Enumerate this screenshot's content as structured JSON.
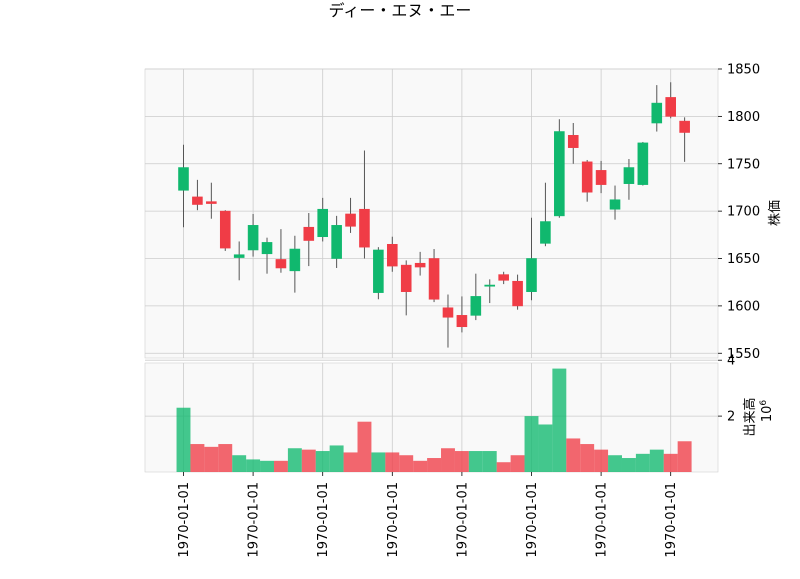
{
  "chart_data": {
    "type": "candlestick",
    "title": "ディー・エヌ・エー",
    "price_ylabel": "株価",
    "volume_ylabel": "出来高",
    "volume_multiplier_label": "10^6",
    "volume_multiplier_base": "10",
    "volume_multiplier_exp": "6",
    "price_ylim": [
      1545,
      1850
    ],
    "price_ticks": [
      1550,
      1600,
      1650,
      1700,
      1750,
      1800,
      1850
    ],
    "volume_ylim": [
      0,
      3.9
    ],
    "volume_ticks": [
      2,
      4
    ],
    "x_tick_labels": [
      "1970-01-01",
      "1970-01-01",
      "1970-01-01",
      "1970-01-01",
      "1970-01-01",
      "1970-01-01",
      "1970-01-01",
      "1970-01-01"
    ],
    "x_tick_indices": [
      0,
      5,
      10,
      15,
      20,
      25,
      30,
      35
    ],
    "colors": {
      "up": "#10b86e",
      "down": "#f03c46",
      "wick": "#555555",
      "grid": "#cccccc",
      "panel": "#f9f9f9"
    },
    "grid": true,
    "candles": [
      {
        "o": 1722,
        "h": 1770,
        "l": 1683,
        "c": 1746,
        "v": 2.3
      },
      {
        "o": 1715,
        "h": 1733,
        "l": 1701,
        "c": 1707,
        "v": 1.0
      },
      {
        "o": 1710,
        "h": 1730,
        "l": 1692,
        "c": 1708,
        "v": 0.9
      },
      {
        "o": 1700,
        "h": 1701,
        "l": 1658,
        "c": 1661,
        "v": 1.0
      },
      {
        "o": 1651,
        "h": 1668,
        "l": 1627,
        "c": 1654,
        "v": 0.6
      },
      {
        "o": 1659,
        "h": 1697,
        "l": 1652,
        "c": 1685,
        "v": 0.45
      },
      {
        "o": 1655,
        "h": 1672,
        "l": 1634,
        "c": 1667,
        "v": 0.4
      },
      {
        "o": 1649,
        "h": 1681,
        "l": 1635,
        "c": 1640,
        "v": 0.4
      },
      {
        "o": 1637,
        "h": 1674,
        "l": 1614,
        "c": 1660,
        "v": 0.85
      },
      {
        "o": 1683,
        "h": 1698,
        "l": 1642,
        "c": 1669,
        "v": 0.8
      },
      {
        "o": 1673,
        "h": 1714,
        "l": 1668,
        "c": 1702,
        "v": 0.75
      },
      {
        "o": 1650,
        "h": 1695,
        "l": 1640,
        "c": 1685,
        "v": 0.95
      },
      {
        "o": 1697,
        "h": 1714,
        "l": 1677,
        "c": 1684,
        "v": 0.7
      },
      {
        "o": 1702,
        "h": 1764,
        "l": 1650,
        "c": 1662,
        "v": 1.8
      },
      {
        "o": 1614,
        "h": 1662,
        "l": 1607,
        "c": 1659,
        "v": 0.7
      },
      {
        "o": 1665,
        "h": 1673,
        "l": 1636,
        "c": 1642,
        "v": 0.7
      },
      {
        "o": 1643,
        "h": 1648,
        "l": 1590,
        "c": 1615,
        "v": 0.6
      },
      {
        "o": 1645,
        "h": 1657,
        "l": 1632,
        "c": 1641,
        "v": 0.4
      },
      {
        "o": 1650,
        "h": 1660,
        "l": 1604,
        "c": 1607,
        "v": 0.5
      },
      {
        "o": 1598,
        "h": 1612,
        "l": 1556,
        "c": 1588,
        "v": 0.85
      },
      {
        "o": 1590,
        "h": 1610,
        "l": 1572,
        "c": 1578,
        "v": 0.75
      },
      {
        "o": 1590,
        "h": 1634,
        "l": 1585,
        "c": 1610,
        "v": 0.75
      },
      {
        "o": 1621,
        "h": 1628,
        "l": 1603,
        "c": 1622,
        "v": 0.75
      },
      {
        "o": 1633,
        "h": 1636,
        "l": 1623,
        "c": 1627,
        "v": 0.35
      },
      {
        "o": 1626,
        "h": 1633,
        "l": 1596,
        "c": 1600,
        "v": 0.6
      },
      {
        "o": 1615,
        "h": 1693,
        "l": 1606,
        "c": 1650,
        "v": 2.0
      },
      {
        "o": 1666,
        "h": 1730,
        "l": 1663,
        "c": 1689,
        "v": 1.7
      },
      {
        "o": 1695,
        "h": 1797,
        "l": 1693,
        "c": 1784,
        "v": 3.7
      },
      {
        "o": 1780,
        "h": 1793,
        "l": 1750,
        "c": 1767,
        "v": 1.2
      },
      {
        "o": 1752,
        "h": 1754,
        "l": 1710,
        "c": 1720,
        "v": 1.0
      },
      {
        "o": 1743,
        "h": 1753,
        "l": 1719,
        "c": 1728,
        "v": 0.8
      },
      {
        "o": 1702,
        "h": 1727,
        "l": 1691,
        "c": 1712,
        "v": 0.6
      },
      {
        "o": 1729,
        "h": 1755,
        "l": 1712,
        "c": 1746,
        "v": 0.5
      },
      {
        "o": 1728,
        "h": 1773,
        "l": 1727,
        "c": 1772,
        "v": 0.65
      },
      {
        "o": 1793,
        "h": 1833,
        "l": 1784,
        "c": 1814,
        "v": 0.8
      },
      {
        "o": 1820,
        "h": 1836,
        "l": 1798,
        "c": 1800,
        "v": 0.65
      },
      {
        "o": 1795,
        "h": 1799,
        "l": 1752,
        "c": 1783,
        "v": 1.1
      }
    ]
  }
}
